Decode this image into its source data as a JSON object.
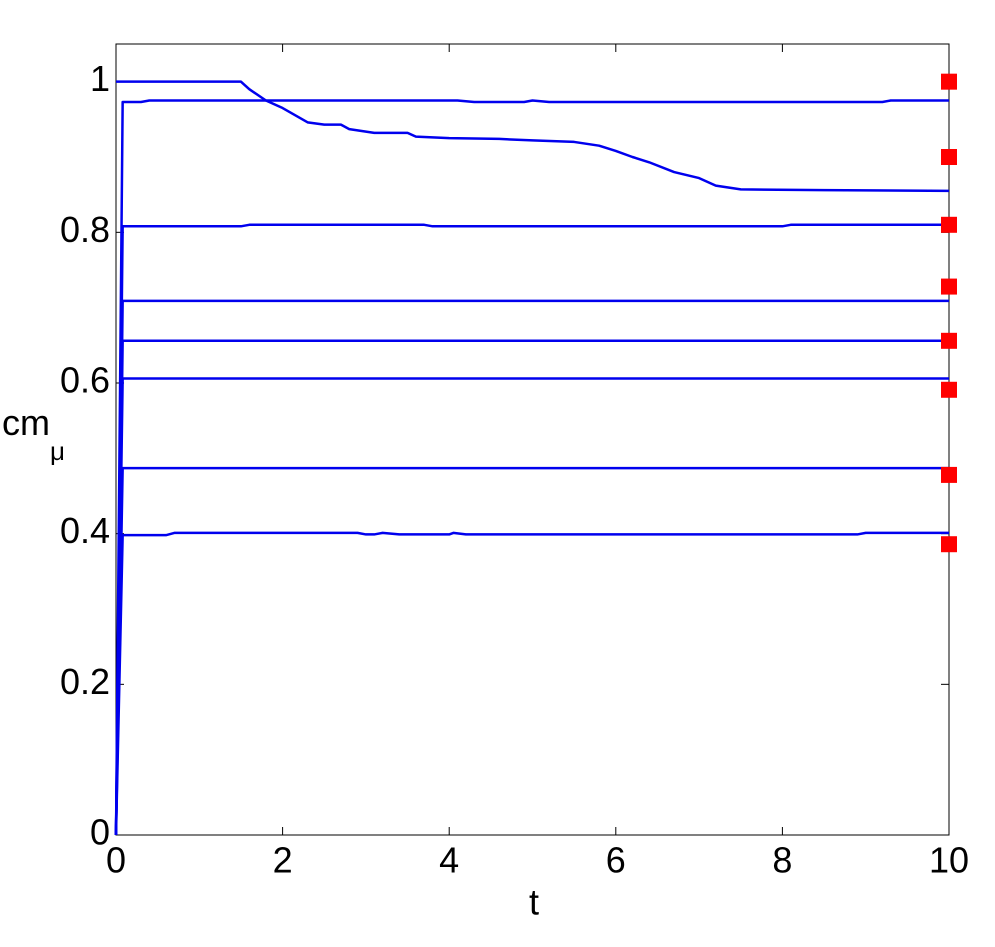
{
  "chart_data": {
    "type": "line",
    "xlabel": "t",
    "ylabel": {
      "base": "cm",
      "sub": "μ"
    },
    "xlim": [
      0,
      10
    ],
    "ylim": [
      0,
      1.05
    ],
    "xticks": [
      0,
      2,
      4,
      6,
      8,
      10
    ],
    "yticks": [
      0,
      0.2,
      0.4,
      0.6,
      0.8,
      1
    ],
    "series": [
      {
        "color": "#0000ee",
        "x": [
          0,
          1.5,
          1.6,
          1.8,
          2.0,
          2.3,
          2.5,
          2.7,
          2.8,
          3.1,
          3.5,
          3.6,
          4.0,
          4.6,
          5.0,
          5.5,
          5.8,
          6.0,
          6.2,
          6.4,
          6.7,
          7.0,
          7.2,
          7.5,
          8.5,
          10
        ],
        "values": [
          1,
          1,
          0.99,
          0.975,
          0.965,
          0.946,
          0.943,
          0.943,
          0.937,
          0.932,
          0.932,
          0.927,
          0.925,
          0.924,
          0.922,
          0.92,
          0.915,
          0.908,
          0.9,
          0.893,
          0.88,
          0.872,
          0.862,
          0.857,
          0.856,
          0.855
        ]
      },
      {
        "color": "#0000ee",
        "x": [
          0,
          0.08,
          0.3,
          0.4,
          4.1,
          4.3,
          4.9,
          5.0,
          5.2,
          9.2,
          9.3,
          10
        ],
        "values": [
          0,
          0.973,
          0.973,
          0.975,
          0.975,
          0.973,
          0.973,
          0.975,
          0.973,
          0.973,
          0.975,
          0.975
        ]
      },
      {
        "color": "#0000ee",
        "x": [
          0,
          0.08,
          1.5,
          1.6,
          3.7,
          3.8,
          8.0,
          8.1,
          10
        ],
        "values": [
          0,
          0.808,
          0.808,
          0.81,
          0.81,
          0.808,
          0.808,
          0.81,
          0.81
        ]
      },
      {
        "color": "#0000ee",
        "x": [
          0,
          0.08,
          10
        ],
        "values": [
          0,
          0.709,
          0.709
        ]
      },
      {
        "color": "#0000ee",
        "x": [
          0,
          0.08,
          10
        ],
        "values": [
          0,
          0.656,
          0.656
        ]
      },
      {
        "color": "#0000ee",
        "x": [
          0,
          0.08,
          10
        ],
        "values": [
          0,
          0.606,
          0.606
        ]
      },
      {
        "color": "#0000ee",
        "x": [
          0,
          0.08,
          10
        ],
        "values": [
          0,
          0.487,
          0.487
        ]
      },
      {
        "color": "#0000ee",
        "x": [
          0,
          0.08,
          0.6,
          0.7,
          2.9,
          3.0,
          3.1,
          3.2,
          3.4,
          4.0,
          4.05,
          4.2,
          8.9,
          9.0,
          10
        ],
        "values": [
          0,
          0.398,
          0.398,
          0.401,
          0.401,
          0.399,
          0.399,
          0.401,
          0.399,
          0.399,
          0.401,
          0.399,
          0.399,
          0.401,
          0.401
        ]
      }
    ],
    "markers": {
      "color": "#ff0000",
      "x": [
        10,
        10,
        10,
        10,
        10,
        10,
        10,
        10
      ],
      "values": [
        1.0,
        0.9,
        0.81,
        0.728,
        0.656,
        0.591,
        0.478,
        0.386
      ]
    }
  }
}
